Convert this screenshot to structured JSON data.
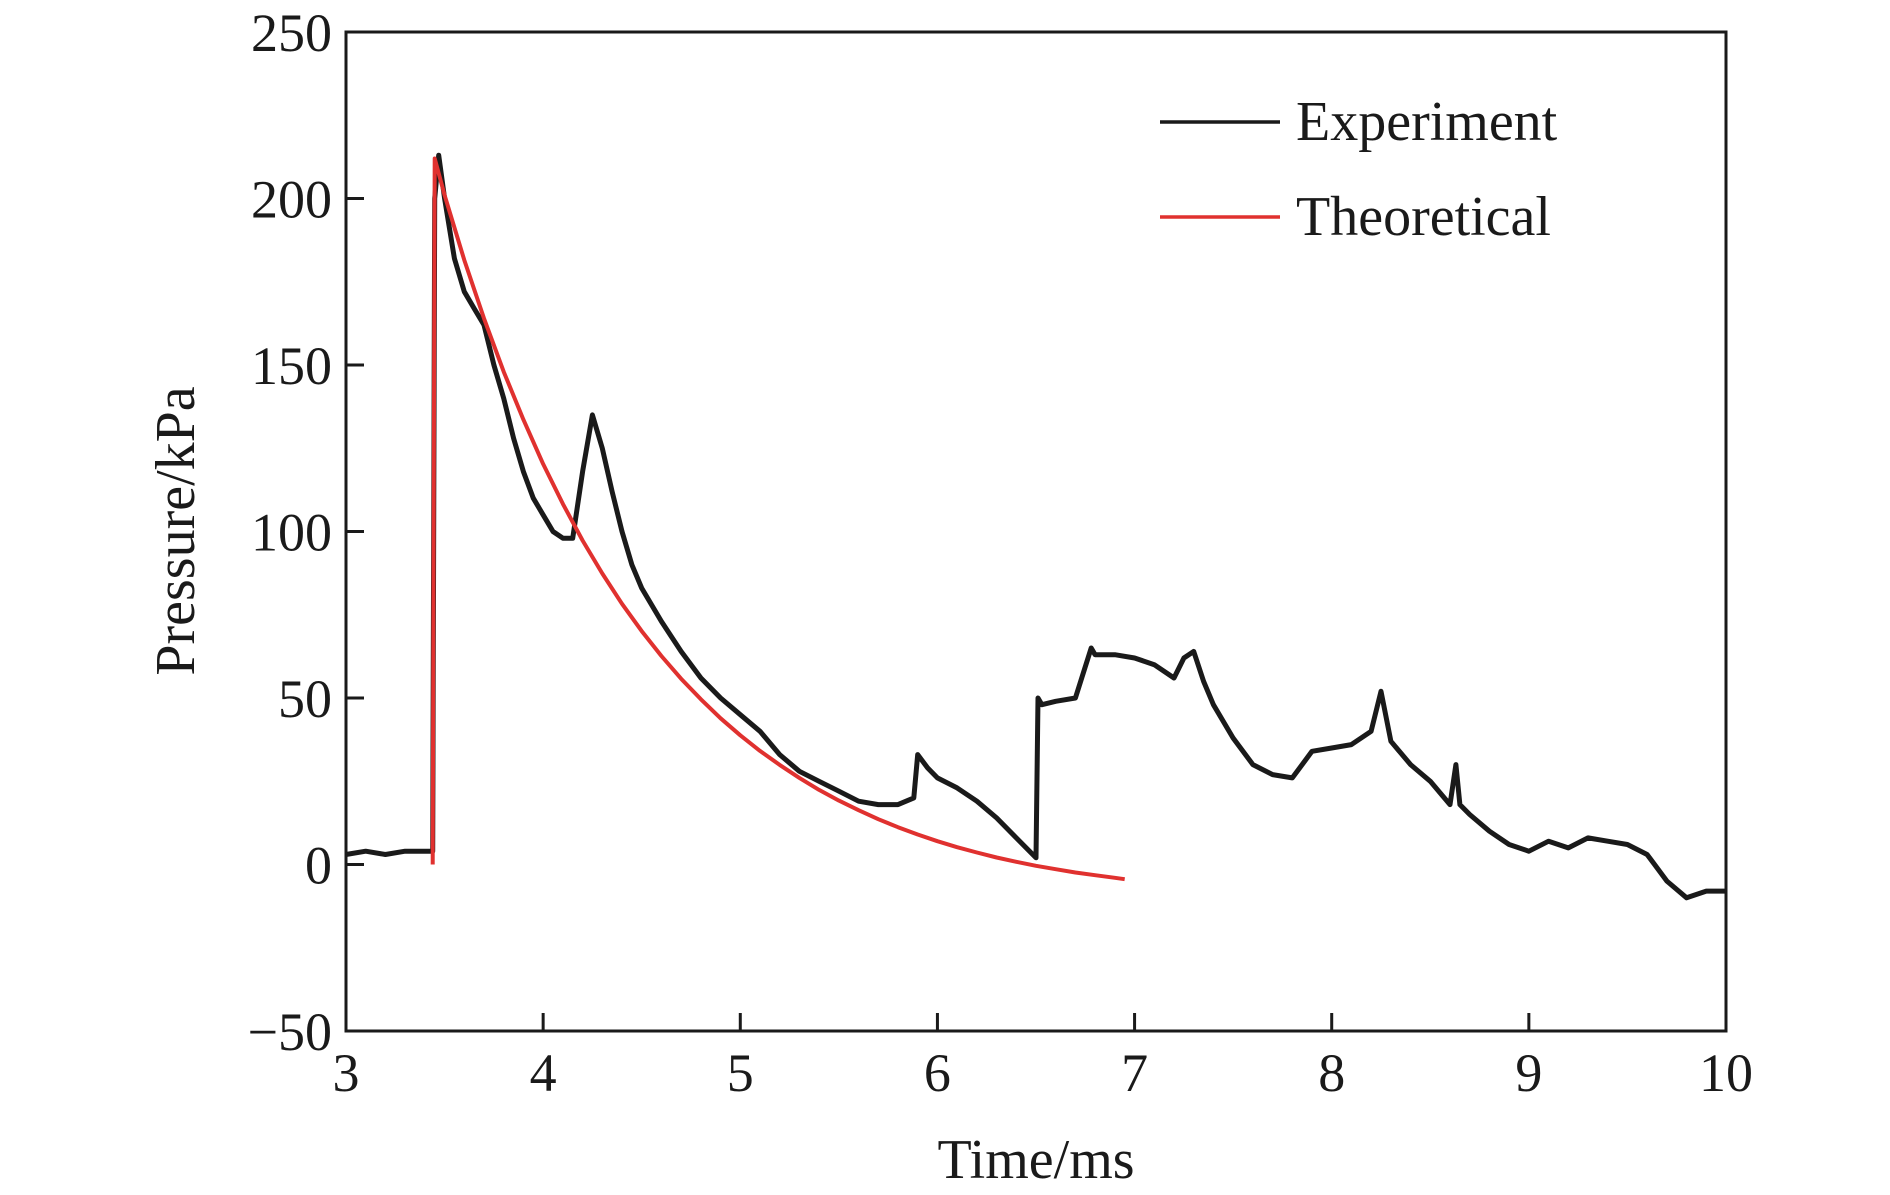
{
  "chart_data": {
    "type": "line",
    "title": "",
    "xlabel": "Time/ms",
    "ylabel": "Pressure/kPa",
    "xlim": [
      3,
      10
    ],
    "ylim": [
      -50,
      250
    ],
    "xticks": [
      3,
      4,
      5,
      6,
      7,
      8,
      9,
      10
    ],
    "yticks": [
      -50,
      0,
      50,
      100,
      150,
      200,
      250
    ],
    "xtick_labels": [
      "3",
      "4",
      "5",
      "6",
      "7",
      "8",
      "9",
      "10"
    ],
    "ytick_labels": [
      "−50",
      "0",
      "50",
      "100",
      "150",
      "200",
      "250"
    ],
    "grid": false,
    "legend_position": "top-right",
    "series": [
      {
        "name": "Experiment",
        "color": "#1a1a1a",
        "x": [
          3.0,
          3.1,
          3.2,
          3.3,
          3.44,
          3.45,
          3.47,
          3.5,
          3.55,
          3.6,
          3.65,
          3.7,
          3.75,
          3.8,
          3.85,
          3.9,
          3.95,
          4.0,
          4.05,
          4.1,
          4.15,
          4.2,
          4.25,
          4.3,
          4.35,
          4.4,
          4.45,
          4.5,
          4.6,
          4.7,
          4.8,
          4.9,
          5.0,
          5.1,
          5.2,
          5.3,
          5.4,
          5.5,
          5.6,
          5.7,
          5.8,
          5.88,
          5.9,
          5.95,
          6.0,
          6.1,
          6.2,
          6.3,
          6.4,
          6.5,
          6.51,
          6.53,
          6.6,
          6.7,
          6.78,
          6.8,
          6.9,
          7.0,
          7.1,
          7.2,
          7.25,
          7.3,
          7.35,
          7.4,
          7.5,
          7.6,
          7.7,
          7.8,
          7.9,
          8.0,
          8.1,
          8.2,
          8.25,
          8.3,
          8.4,
          8.5,
          8.6,
          8.63,
          8.65,
          8.7,
          8.8,
          8.9,
          9.0,
          9.1,
          9.2,
          9.3,
          9.4,
          9.5,
          9.6,
          9.7,
          9.8,
          9.9,
          10.0
        ],
        "y": [
          3,
          4,
          3,
          4,
          4,
          200,
          213,
          200,
          182,
          172,
          167,
          162,
          150,
          140,
          128,
          118,
          110,
          105,
          100,
          98,
          98,
          118,
          135,
          125,
          112,
          100,
          90,
          83,
          73,
          64,
          56,
          50,
          45,
          40,
          33,
          28,
          25,
          22,
          19,
          18,
          18,
          20,
          33,
          29,
          26,
          23,
          19,
          14,
          8,
          2,
          50,
          48,
          49,
          50,
          65,
          63,
          63,
          62,
          60,
          56,
          62,
          64,
          55,
          48,
          38,
          30,
          27,
          26,
          34,
          35,
          36,
          40,
          52,
          37,
          30,
          25,
          18,
          30,
          18,
          15,
          10,
          6,
          4,
          7,
          5,
          8,
          7,
          6,
          3,
          -5,
          -10,
          -8,
          -8
        ]
      },
      {
        "name": "Theoretical",
        "color": "#e0312f",
        "x": [
          3.44,
          3.45,
          3.5,
          3.6,
          3.7,
          3.8,
          3.9,
          4.0,
          4.1,
          4.2,
          4.3,
          4.4,
          4.5,
          4.6,
          4.7,
          4.8,
          4.9,
          5.0,
          5.1,
          5.2,
          5.3,
          5.4,
          5.5,
          5.6,
          5.7,
          5.8,
          5.9,
          6.0,
          6.1,
          6.2,
          6.3,
          6.4,
          6.5,
          6.6,
          6.7,
          6.8,
          6.9,
          6.95
        ],
        "y": [
          0,
          212,
          201,
          181.5,
          164,
          148,
          133.6,
          120.3,
          108.3,
          97.3,
          87.4,
          78.3,
          70.1,
          62.6,
          55.8,
          49.6,
          43.9,
          38.8,
          34.1,
          29.9,
          26.0,
          22.4,
          19.2,
          16.3,
          13.6,
          11.2,
          9.0,
          7.0,
          5.2,
          3.6,
          2.1,
          0.8,
          -0.4,
          -1.4,
          -2.4,
          -3.2,
          -4.0,
          -4.4
        ]
      }
    ]
  }
}
